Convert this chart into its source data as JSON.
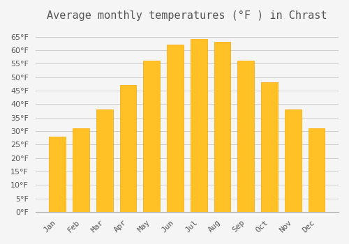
{
  "title": "Average monthly temperatures (°F ) in Chrast",
  "months": [
    "Jan",
    "Feb",
    "Mar",
    "Apr",
    "May",
    "Jun",
    "Jul",
    "Aug",
    "Sep",
    "Oct",
    "Nov",
    "Dec"
  ],
  "values": [
    28,
    31,
    38,
    47,
    56,
    62,
    64,
    63,
    56,
    48,
    38,
    31
  ],
  "bar_color": "#FFC125",
  "bar_edge_color": "#FFA500",
  "background_color": "#F5F5F5",
  "grid_color": "#CCCCCC",
  "text_color": "#555555",
  "ylim": [
    0,
    68
  ],
  "yticks": [
    0,
    5,
    10,
    15,
    20,
    25,
    30,
    35,
    40,
    45,
    50,
    55,
    60,
    65
  ],
  "title_fontsize": 11,
  "tick_fontsize": 8
}
